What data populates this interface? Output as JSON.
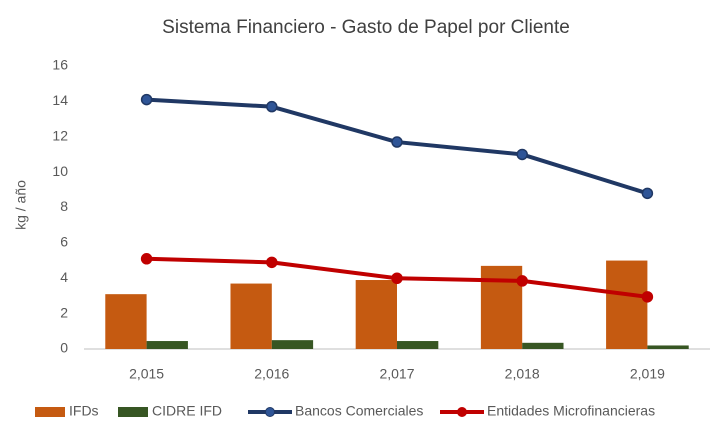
{
  "chart_data": {
    "type": "bar-line",
    "title": "Sistema Financiero - Gasto de Papel por Cliente",
    "y_label": "kg / año",
    "categories": [
      "2,015",
      "2,016",
      "2,017",
      "2,018",
      "2,019"
    ],
    "series": [
      {
        "name": "IFDs",
        "type": "bar",
        "color": "#c55a11",
        "values": [
          3.1,
          3.7,
          3.9,
          4.7,
          5.0
        ]
      },
      {
        "name": "CIDRE IFD",
        "type": "bar",
        "color": "#375623",
        "values": [
          0.45,
          0.5,
          0.45,
          0.35,
          0.2
        ]
      },
      {
        "name": "Bancos Comerciales",
        "type": "line",
        "color": "#203864",
        "marker_color": "#2f5597",
        "values": [
          14.1,
          13.7,
          11.7,
          11.0,
          8.8
        ]
      },
      {
        "name": "Entidades Microfinancieras",
        "type": "line",
        "color": "#c00000",
        "marker_color": "#c00000",
        "values": [
          5.1,
          4.9,
          4.0,
          3.85,
          2.95
        ]
      }
    ],
    "ylim": [
      0,
      16
    ],
    "yticks": [
      0,
      2,
      4,
      6,
      8,
      10,
      12,
      14,
      16
    ],
    "grid": false,
    "legend": "bottom"
  }
}
